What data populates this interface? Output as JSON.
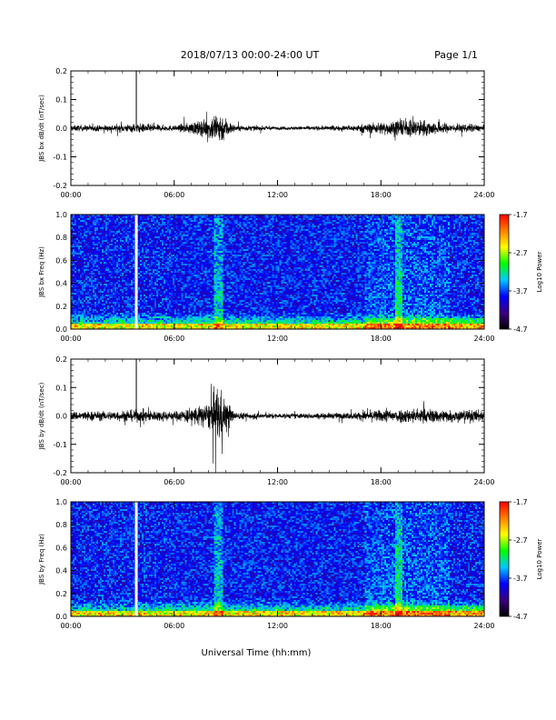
{
  "header": {
    "title": "2018/07/13  00:00-24:00 UT",
    "page": "Page 1/1"
  },
  "xlabel": "Universal Time (hh:mm)",
  "chart_data": [
    {
      "type": "line",
      "ylabel": "JBS bx dB/dt (nT/sec)",
      "xlim": [
        0,
        24
      ],
      "ylim": [
        -0.2,
        0.2
      ],
      "x_ticks": [
        "00:00",
        "06:00",
        "12:00",
        "18:00",
        "24:00"
      ],
      "y_ticks": [
        "0.2",
        "0.1",
        "0.0",
        "-0.1",
        "-0.2"
      ],
      "color": "#000000",
      "spike_hour": 3.8,
      "spike_value": 0.2,
      "activity_envelope": [
        {
          "hour": 0,
          "amplitude": 0.01
        },
        {
          "hour": 2,
          "amplitude": 0.01
        },
        {
          "hour": 4,
          "amplitude": 0.015
        },
        {
          "hour": 6,
          "amplitude": 0.008
        },
        {
          "hour": 8,
          "amplitude": 0.03
        },
        {
          "hour": 8.5,
          "amplitude": 0.06
        },
        {
          "hour": 9.5,
          "amplitude": 0.01
        },
        {
          "hour": 12,
          "amplitude": 0.005
        },
        {
          "hour": 16,
          "amplitude": 0.008
        },
        {
          "hour": 18,
          "amplitude": 0.02
        },
        {
          "hour": 20,
          "amplitude": 0.03
        },
        {
          "hour": 22,
          "amplitude": 0.015
        },
        {
          "hour": 24,
          "amplitude": 0.01
        }
      ]
    },
    {
      "type": "heatmap",
      "ylabel": "JBS bx Freq (Hz)",
      "xlim": [
        0,
        24
      ],
      "ylim": [
        0,
        1.0
      ],
      "x_ticks": [
        "00:00",
        "06:00",
        "12:00",
        "18:00",
        "24:00"
      ],
      "y_ticks": [
        "1.0",
        "0.8",
        "0.6",
        "0.4",
        "0.2",
        "0.0"
      ],
      "colorbar": {
        "label": "Log10 Power",
        "ticks": [
          "-1.7",
          "-2.7",
          "-3.7",
          "-4.7"
        ],
        "range": [
          -4.7,
          -1.7
        ],
        "colors": [
          "#000000",
          "#3b0080",
          "#0000ff",
          "#00c8ff",
          "#00ff00",
          "#ffff00",
          "#ff8000",
          "#ff0000"
        ]
      },
      "data_gap_hour": 3.8,
      "enhanced_hours": [
        8.5,
        19.0
      ]
    },
    {
      "type": "line",
      "ylabel": "JBS by dB/dt (nT/sec)",
      "xlim": [
        0,
        24
      ],
      "ylim": [
        -0.2,
        0.2
      ],
      "x_ticks": [
        "00:00",
        "06:00",
        "12:00",
        "18:00",
        "24:00"
      ],
      "y_ticks": [
        "0.2",
        "0.1",
        "0.0",
        "-0.1",
        "-0.2"
      ],
      "color": "#000000",
      "spike_hour": 3.8,
      "spike_value": 0.2,
      "activity_envelope": [
        {
          "hour": 0,
          "amplitude": 0.015
        },
        {
          "hour": 2,
          "amplitude": 0.015
        },
        {
          "hour": 4,
          "amplitude": 0.02
        },
        {
          "hour": 6,
          "amplitude": 0.015
        },
        {
          "hour": 8,
          "amplitude": 0.04
        },
        {
          "hour": 8.5,
          "amplitude": 0.1
        },
        {
          "hour": 9.5,
          "amplitude": 0.012
        },
        {
          "hour": 12,
          "amplitude": 0.008
        },
        {
          "hour": 16,
          "amplitude": 0.01
        },
        {
          "hour": 18,
          "amplitude": 0.02
        },
        {
          "hour": 20,
          "amplitude": 0.025
        },
        {
          "hour": 22,
          "amplitude": 0.02
        },
        {
          "hour": 24,
          "amplitude": 0.02
        }
      ]
    },
    {
      "type": "heatmap",
      "ylabel": "JBS by Freq (Hz)",
      "xlim": [
        0,
        24
      ],
      "ylim": [
        0,
        1.0
      ],
      "x_ticks": [
        "00:00",
        "06:00",
        "12:00",
        "18:00",
        "24:00"
      ],
      "y_ticks": [
        "1.0",
        "0.8",
        "0.6",
        "0.4",
        "0.2",
        "0.0"
      ],
      "colorbar": {
        "label": "Log10 Power",
        "ticks": [
          "-1.7",
          "-2.7",
          "-3.7",
          "-4.7"
        ],
        "range": [
          -4.7,
          -1.7
        ],
        "colors": [
          "#000000",
          "#3b0080",
          "#0000ff",
          "#00c8ff",
          "#00ff00",
          "#ffff00",
          "#ff8000",
          "#ff0000"
        ]
      },
      "data_gap_hour": 3.8,
      "enhanced_hours": [
        8.5,
        19.0
      ]
    }
  ]
}
